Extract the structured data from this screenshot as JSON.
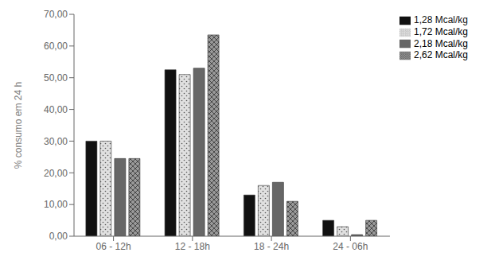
{
  "chart_data": {
    "type": "bar",
    "categories": [
      "06 - 12h",
      "12 - 18h",
      "18 - 24h",
      "24 - 06h"
    ],
    "series": [
      {
        "name": "1,28 Mcal/kg",
        "color": "#111111",
        "values": [
          30.0,
          52.5,
          13.0,
          5.0
        ]
      },
      {
        "name": "1,72 Mcal/kg",
        "color": "#e0e0e0",
        "values": [
          30.0,
          51.0,
          16.0,
          3.0
        ]
      },
      {
        "name": "2,18 Mcal/kg",
        "color": "#888888",
        "values": [
          24.5,
          53.0,
          17.0,
          0.5
        ]
      },
      {
        "name": "2,62 Mcal/kg",
        "color": "#999999",
        "values": [
          24.5,
          63.5,
          11.0,
          5.0
        ]
      }
    ],
    "ylabel": "% consumo em 24 h",
    "ylim": [
      0,
      70
    ],
    "yticks": [
      {
        "value": 0,
        "label": "0,00"
      },
      {
        "value": 10,
        "label": "10,00"
      },
      {
        "value": 20,
        "label": "20,00"
      },
      {
        "value": 30,
        "label": "30,00"
      },
      {
        "value": 40,
        "label": "40,00"
      },
      {
        "value": 50,
        "label": "50,00"
      },
      {
        "value": 60,
        "label": "60,00"
      },
      {
        "value": 70,
        "label": "70,00"
      }
    ],
    "grid": false,
    "legend": "upper right"
  }
}
